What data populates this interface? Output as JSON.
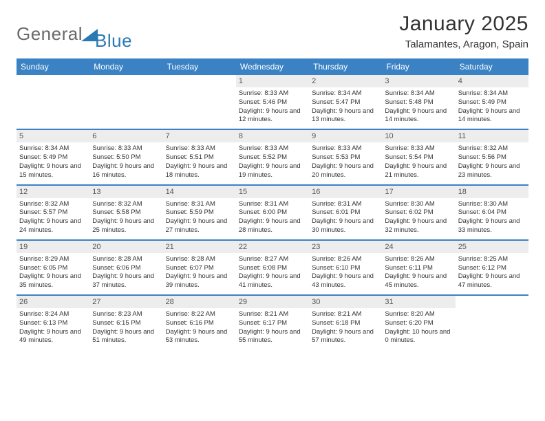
{
  "logo": {
    "word1": "General",
    "word2": "Blue"
  },
  "title": "January 2025",
  "subtitle": "Talamantes, Aragon, Spain",
  "colors": {
    "header_bg": "#3a82c4",
    "header_text": "#ffffff",
    "daynum_bg": "#ededed",
    "daynum_text": "#555555",
    "row_border": "#3a82c4",
    "logo_gray": "#6a6a6a",
    "logo_blue": "#2b79b4",
    "text": "#333333",
    "background": "#ffffff"
  },
  "day_headers": [
    "Sunday",
    "Monday",
    "Tuesday",
    "Wednesday",
    "Thursday",
    "Friday",
    "Saturday"
  ],
  "weeks": [
    [
      null,
      null,
      null,
      {
        "n": "1",
        "sr": "8:33 AM",
        "ss": "5:46 PM",
        "dl": "9 hours and 12 minutes."
      },
      {
        "n": "2",
        "sr": "8:34 AM",
        "ss": "5:47 PM",
        "dl": "9 hours and 13 minutes."
      },
      {
        "n": "3",
        "sr": "8:34 AM",
        "ss": "5:48 PM",
        "dl": "9 hours and 14 minutes."
      },
      {
        "n": "4",
        "sr": "8:34 AM",
        "ss": "5:49 PM",
        "dl": "9 hours and 14 minutes."
      }
    ],
    [
      {
        "n": "5",
        "sr": "8:34 AM",
        "ss": "5:49 PM",
        "dl": "9 hours and 15 minutes."
      },
      {
        "n": "6",
        "sr": "8:33 AM",
        "ss": "5:50 PM",
        "dl": "9 hours and 16 minutes."
      },
      {
        "n": "7",
        "sr": "8:33 AM",
        "ss": "5:51 PM",
        "dl": "9 hours and 18 minutes."
      },
      {
        "n": "8",
        "sr": "8:33 AM",
        "ss": "5:52 PM",
        "dl": "9 hours and 19 minutes."
      },
      {
        "n": "9",
        "sr": "8:33 AM",
        "ss": "5:53 PM",
        "dl": "9 hours and 20 minutes."
      },
      {
        "n": "10",
        "sr": "8:33 AM",
        "ss": "5:54 PM",
        "dl": "9 hours and 21 minutes."
      },
      {
        "n": "11",
        "sr": "8:32 AM",
        "ss": "5:56 PM",
        "dl": "9 hours and 23 minutes."
      }
    ],
    [
      {
        "n": "12",
        "sr": "8:32 AM",
        "ss": "5:57 PM",
        "dl": "9 hours and 24 minutes."
      },
      {
        "n": "13",
        "sr": "8:32 AM",
        "ss": "5:58 PM",
        "dl": "9 hours and 25 minutes."
      },
      {
        "n": "14",
        "sr": "8:31 AM",
        "ss": "5:59 PM",
        "dl": "9 hours and 27 minutes."
      },
      {
        "n": "15",
        "sr": "8:31 AM",
        "ss": "6:00 PM",
        "dl": "9 hours and 28 minutes."
      },
      {
        "n": "16",
        "sr": "8:31 AM",
        "ss": "6:01 PM",
        "dl": "9 hours and 30 minutes."
      },
      {
        "n": "17",
        "sr": "8:30 AM",
        "ss": "6:02 PM",
        "dl": "9 hours and 32 minutes."
      },
      {
        "n": "18",
        "sr": "8:30 AM",
        "ss": "6:04 PM",
        "dl": "9 hours and 33 minutes."
      }
    ],
    [
      {
        "n": "19",
        "sr": "8:29 AM",
        "ss": "6:05 PM",
        "dl": "9 hours and 35 minutes."
      },
      {
        "n": "20",
        "sr": "8:28 AM",
        "ss": "6:06 PM",
        "dl": "9 hours and 37 minutes."
      },
      {
        "n": "21",
        "sr": "8:28 AM",
        "ss": "6:07 PM",
        "dl": "9 hours and 39 minutes."
      },
      {
        "n": "22",
        "sr": "8:27 AM",
        "ss": "6:08 PM",
        "dl": "9 hours and 41 minutes."
      },
      {
        "n": "23",
        "sr": "8:26 AM",
        "ss": "6:10 PM",
        "dl": "9 hours and 43 minutes."
      },
      {
        "n": "24",
        "sr": "8:26 AM",
        "ss": "6:11 PM",
        "dl": "9 hours and 45 minutes."
      },
      {
        "n": "25",
        "sr": "8:25 AM",
        "ss": "6:12 PM",
        "dl": "9 hours and 47 minutes."
      }
    ],
    [
      {
        "n": "26",
        "sr": "8:24 AM",
        "ss": "6:13 PM",
        "dl": "9 hours and 49 minutes."
      },
      {
        "n": "27",
        "sr": "8:23 AM",
        "ss": "6:15 PM",
        "dl": "9 hours and 51 minutes."
      },
      {
        "n": "28",
        "sr": "8:22 AM",
        "ss": "6:16 PM",
        "dl": "9 hours and 53 minutes."
      },
      {
        "n": "29",
        "sr": "8:21 AM",
        "ss": "6:17 PM",
        "dl": "9 hours and 55 minutes."
      },
      {
        "n": "30",
        "sr": "8:21 AM",
        "ss": "6:18 PM",
        "dl": "9 hours and 57 minutes."
      },
      {
        "n": "31",
        "sr": "8:20 AM",
        "ss": "6:20 PM",
        "dl": "10 hours and 0 minutes."
      },
      null
    ]
  ],
  "labels": {
    "sunrise": "Sunrise: ",
    "sunset": "Sunset: ",
    "daylight": "Daylight: "
  }
}
